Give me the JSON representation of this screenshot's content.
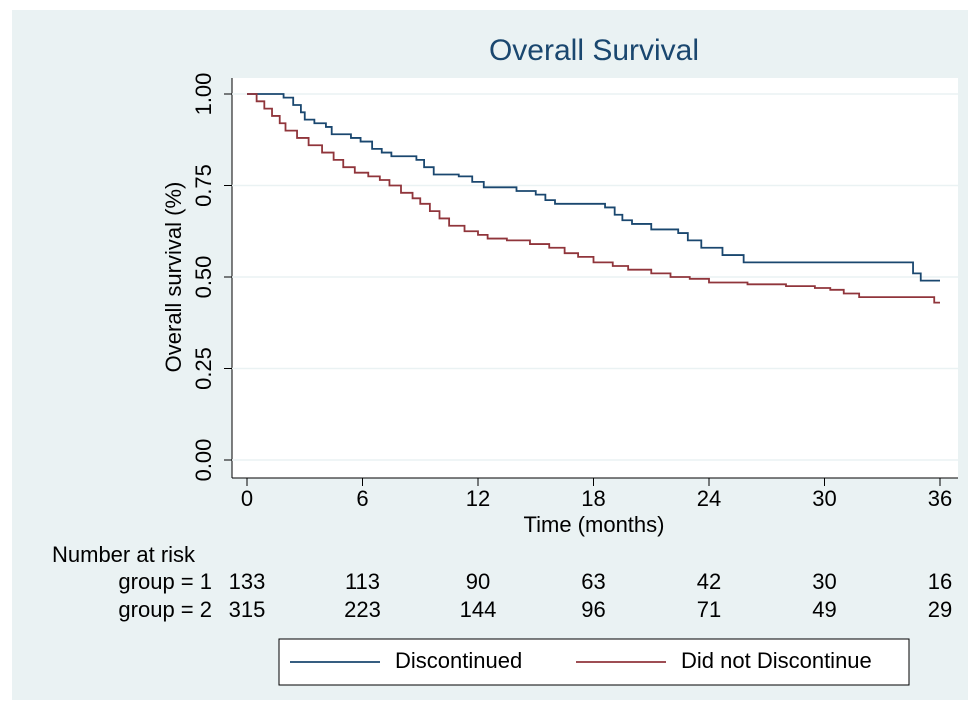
{
  "chart_data": {
    "type": "line",
    "step": true,
    "title": "Overall Survival",
    "xlabel": "Time (months)",
    "ylabel": "Overall survival (%)",
    "xlim": [
      0,
      36
    ],
    "ylim": [
      0,
      1
    ],
    "xticks": [
      0,
      6,
      12,
      18,
      24,
      30,
      36
    ],
    "yticks": [
      {
        "value": 0,
        "label": "0.00"
      },
      {
        "value": 0.25,
        "label": "0.25"
      },
      {
        "value": 0.5,
        "label": "0.50"
      },
      {
        "value": 0.75,
        "label": "0.75"
      },
      {
        "value": 1,
        "label": "1.00"
      }
    ],
    "grid": true,
    "legend": "bottom",
    "series": [
      {
        "name": "Discontinued",
        "color": "#1a476f",
        "x": [
          0,
          1.7,
          1.9,
          2.4,
          2.8,
          3.0,
          3.5,
          4.1,
          4.4,
          5.4,
          5.9,
          6.5,
          7.0,
          7.5,
          8.8,
          9.2,
          9.7,
          11.0,
          11.7,
          12.3,
          14.0,
          15.0,
          15.5,
          16.0,
          18.6,
          19.1,
          19.5,
          20.0,
          21.0,
          22.4,
          22.9,
          23.6,
          24.7,
          25.8,
          34.5,
          34.6,
          35.0,
          36.0
        ],
        "values": [
          1.0,
          1.0,
          0.99,
          0.97,
          0.95,
          0.93,
          0.92,
          0.91,
          0.89,
          0.88,
          0.87,
          0.85,
          0.84,
          0.83,
          0.82,
          0.8,
          0.78,
          0.775,
          0.76,
          0.745,
          0.735,
          0.725,
          0.71,
          0.7,
          0.69,
          0.67,
          0.655,
          0.645,
          0.63,
          0.62,
          0.6,
          0.58,
          0.56,
          0.54,
          0.54,
          0.51,
          0.49,
          0.49
        ]
      },
      {
        "name": "Did not Discontinue",
        "color": "#90353b",
        "x": [
          0,
          0.5,
          0.9,
          1.3,
          1.7,
          2.0,
          2.6,
          3.2,
          3.9,
          4.5,
          5.0,
          5.6,
          6.3,
          6.9,
          7.4,
          8.0,
          8.6,
          9.0,
          9.5,
          10.0,
          10.5,
          11.3,
          12.0,
          12.5,
          13.5,
          14.7,
          15.7,
          16.5,
          17.2,
          18.0,
          19.0,
          19.8,
          21.0,
          22.0,
          23.0,
          24.0,
          26.0,
          28.0,
          29.5,
          30.3,
          31.0,
          31.8,
          35.7,
          36.0
        ],
        "values": [
          1.0,
          0.98,
          0.96,
          0.94,
          0.92,
          0.9,
          0.88,
          0.86,
          0.84,
          0.82,
          0.8,
          0.785,
          0.775,
          0.765,
          0.75,
          0.73,
          0.715,
          0.7,
          0.68,
          0.66,
          0.64,
          0.625,
          0.615,
          0.605,
          0.6,
          0.59,
          0.58,
          0.565,
          0.555,
          0.54,
          0.53,
          0.52,
          0.51,
          0.5,
          0.495,
          0.485,
          0.48,
          0.475,
          0.47,
          0.465,
          0.455,
          0.445,
          0.43,
          0.43
        ]
      }
    ],
    "risk_table": {
      "title": "Number at risk",
      "rows": [
        {
          "label": "group = 1",
          "values": [
            133,
            113,
            90,
            63,
            42,
            30,
            16
          ]
        },
        {
          "label": "group = 2",
          "values": [
            315,
            223,
            144,
            96,
            71,
            49,
            29
          ]
        }
      ]
    }
  }
}
